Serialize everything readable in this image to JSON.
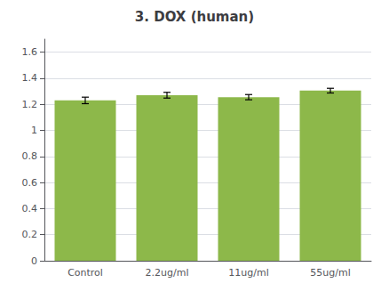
{
  "chart_data": {
    "type": "bar",
    "title": "3. DOX (human)",
    "categories": [
      "Control",
      "2.2ug/ml",
      "11ug/ml",
      "55ug/ml"
    ],
    "values": [
      1.23,
      1.27,
      1.255,
      1.305
    ],
    "errors": [
      0.025,
      0.022,
      0.02,
      0.018
    ],
    "color": "#8db84a",
    "ylim": [
      0,
      1.7
    ],
    "yticks": [
      0,
      0.2,
      0.4,
      0.6,
      0.8,
      1,
      1.2,
      1.4,
      1.6
    ],
    "grid": true
  }
}
